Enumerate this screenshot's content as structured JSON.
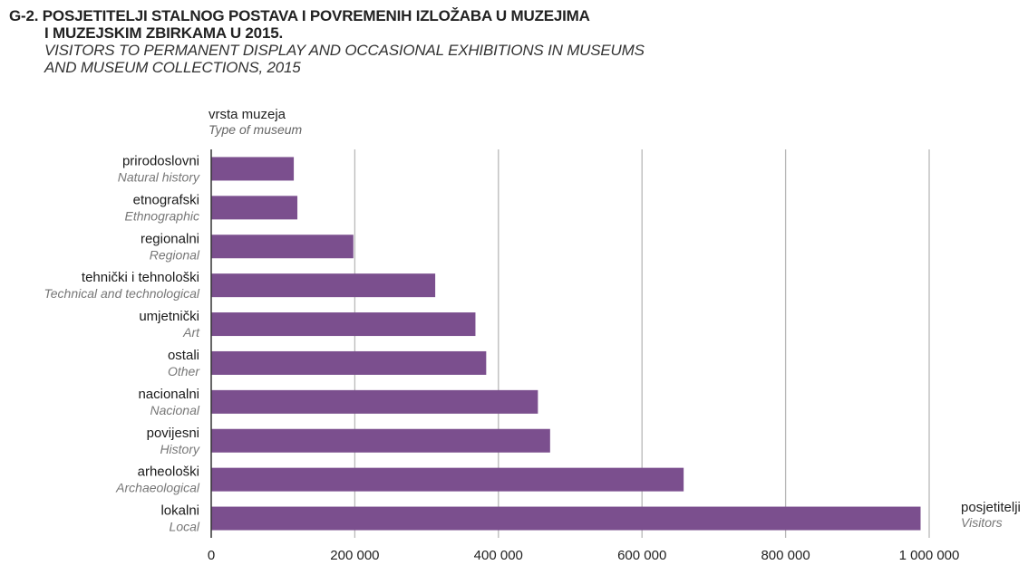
{
  "header": {
    "title_hr_1": "G-2. POSJETITELJI STALNOG POSTAVA I POVREMENIH IZLOŽABA U MUZEJIMA",
    "title_hr_2": "I MUZEJSKIM ZBIRKAMA U 2015.",
    "title_en_1": "VISITORS TO PERMANENT DISPLAY AND OCCASIONAL EXHIBITIONS IN MUSEUMS",
    "title_en_2": "AND MUSEUM COLLECTIONS, 2015"
  },
  "chart_data": {
    "type": "bar",
    "orientation": "horizontal",
    "ylabel_hr": "vrsta muzeja",
    "ylabel_en": "Type of museum",
    "xlabel_hr": "posjetitelji",
    "xlabel_en": "Visitors",
    "categories": [
      {
        "hr": "prirodoslovni",
        "en": "Natural history"
      },
      {
        "hr": "etnografski",
        "en": "Ethnographic"
      },
      {
        "hr": "regionalni",
        "en": "Regional"
      },
      {
        "hr": "tehnički i tehnološki",
        "en": "Technical and technological"
      },
      {
        "hr": "umjetnički",
        "en": "Art"
      },
      {
        "hr": "ostali",
        "en": "Other"
      },
      {
        "hr": "nacionalni",
        "en": "Nacional"
      },
      {
        "hr": "povijesni",
        "en": "History"
      },
      {
        "hr": "arheološki",
        "en": "Archaeological"
      },
      {
        "hr": "lokalni",
        "en": "Local"
      }
    ],
    "values": [
      115000,
      120000,
      198000,
      312000,
      368000,
      383000,
      455000,
      472000,
      658000,
      988000
    ],
    "xlim": [
      0,
      1000000
    ],
    "xticks": [
      0,
      200000,
      400000,
      600000,
      800000,
      1000000
    ],
    "xtick_labels": [
      "0",
      "200 000",
      "400 000",
      "600 000",
      "800 000",
      "1 000 000"
    ],
    "grid": "vertical",
    "bar_color": "#7b4f8e",
    "grid_color": "#b8b8b8",
    "axis_color": "#333333"
  }
}
